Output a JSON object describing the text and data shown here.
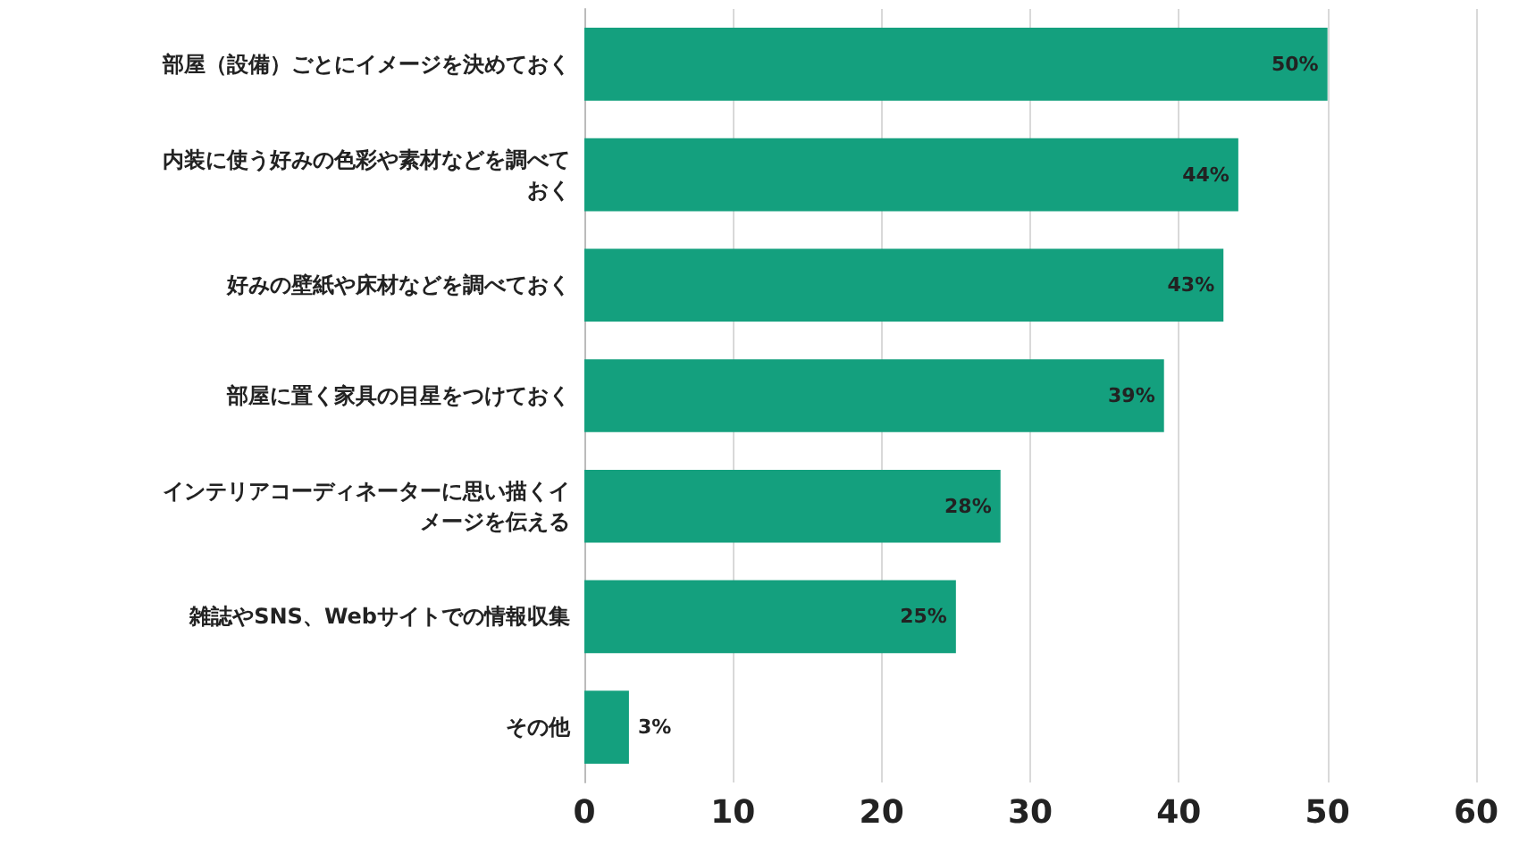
{
  "chart_data": {
    "type": "bar",
    "orientation": "horizontal",
    "categories": [
      "部屋（設備）ごとにイメージを決めておく",
      "内装に使う好みの色彩や素材などを調べておく",
      "好みの壁紙や床材などを調べておく",
      "部屋に置く家具の目星をつけておく",
      "インテリアコーディネーターに思い描くイメージを伝える",
      "雑誌やSNS、Webサイトでの情報収集",
      "その他"
    ],
    "values": [
      50,
      44,
      43,
      39,
      28,
      25,
      3
    ],
    "value_labels": [
      "50%",
      "44%",
      "43%",
      "39%",
      "28%",
      "25%",
      "3%"
    ],
    "color": "#14a07e",
    "xlim": [
      0,
      60
    ],
    "xticks": [
      0,
      10,
      20,
      30,
      40,
      50,
      60
    ],
    "grid": "x"
  }
}
